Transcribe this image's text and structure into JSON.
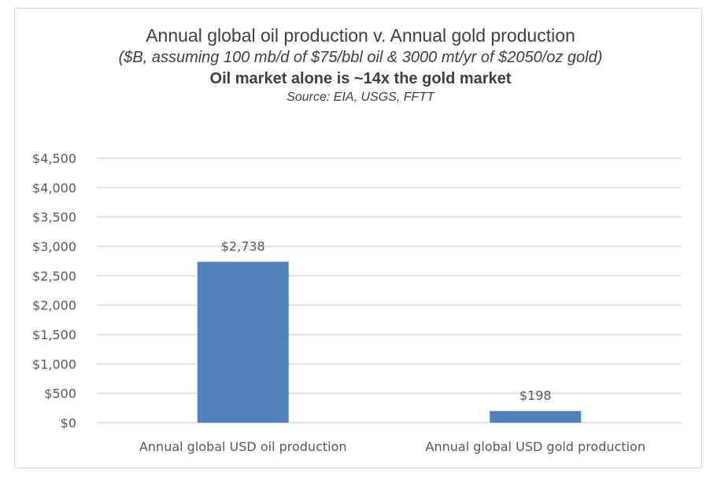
{
  "chart_data": {
    "type": "bar",
    "title": "Annual global oil production v. Annual gold production",
    "subtitle": "($B, assuming 100 mb/d of $75/bbl oil & 3000 mt/yr of $2050/oz gold)",
    "headline": "Oil market alone is ~14x the gold market",
    "source": "Source:  EIA, USGS, FFTT",
    "categories": [
      "Annual global USD oil production",
      "Annual global USD gold production"
    ],
    "values": [
      2738,
      198
    ],
    "data_labels": [
      "$2,738",
      "$198"
    ],
    "ylim": [
      0,
      4500
    ],
    "yticks": [
      0,
      500,
      1000,
      1500,
      2000,
      2500,
      3000,
      3500,
      4000,
      4500
    ],
    "ytick_labels": [
      "$0",
      "$500",
      "$1,000",
      "$1,500",
      "$2,000",
      "$2,500",
      "$3,000",
      "$3,500",
      "$4,000",
      "$4,500"
    ],
    "xlabel": "",
    "ylabel": "",
    "grid": true,
    "legend": "none",
    "colors": {
      "bar": "#4f81bd",
      "grid": "#d9d9d9",
      "text": "#595959"
    }
  }
}
